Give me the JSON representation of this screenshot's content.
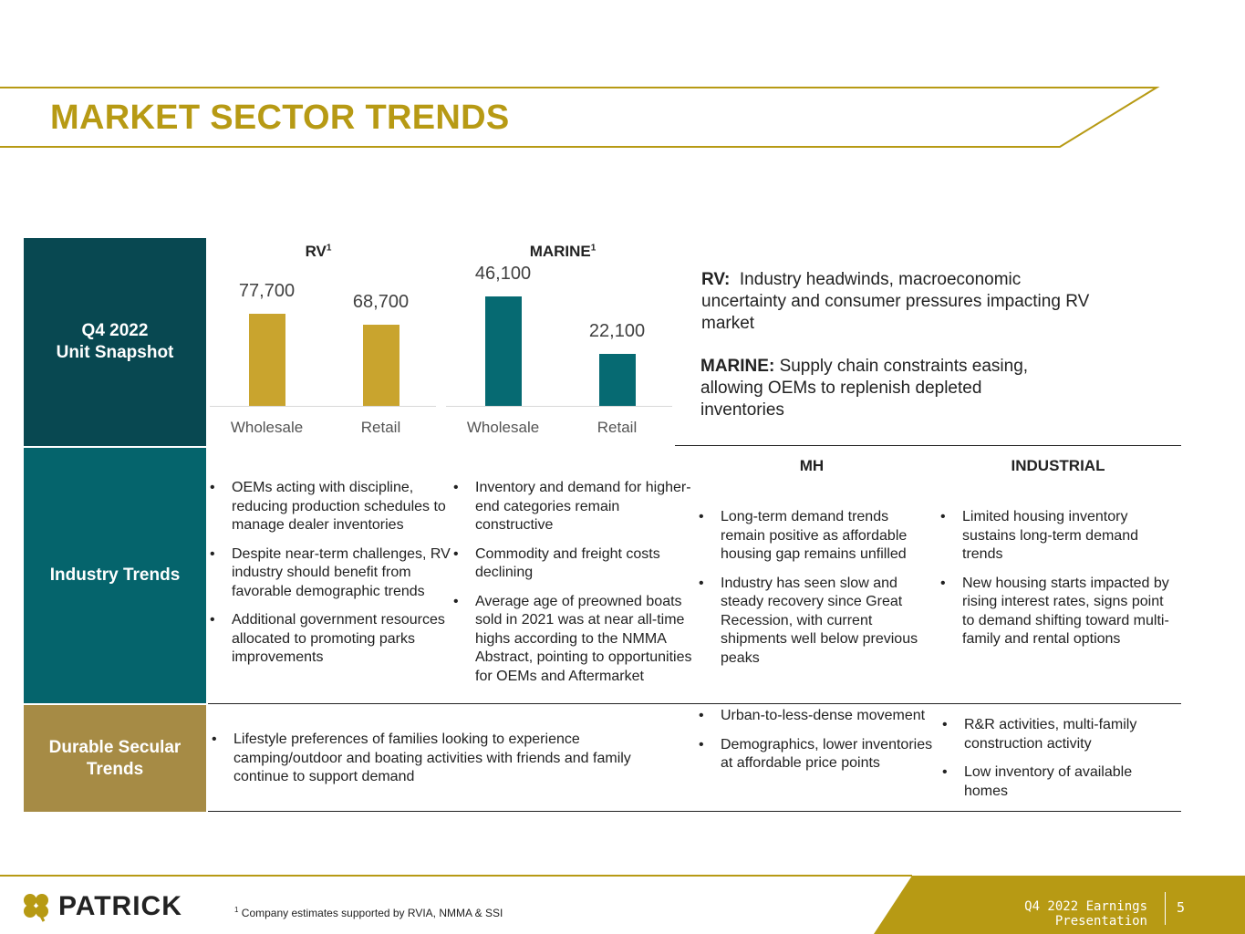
{
  "header": {
    "title": "MARKET SECTOR TRENDS"
  },
  "colors": {
    "gold": "#b79a14",
    "dark_teal": "#084851",
    "teal": "#05646c",
    "tan": "#a68b45",
    "bar_gold": "#c9a42e",
    "bar_teal": "#066a72"
  },
  "rows": {
    "snapshot": {
      "label_line1": "Q4 2022",
      "label_line2": "Unit Snapshot"
    },
    "industry_trends": {
      "label": "Industry Trends"
    },
    "durable": {
      "label_line1": "Durable Secular",
      "label_line2": "Trends"
    }
  },
  "chart_data": [
    {
      "type": "bar",
      "title": "RV",
      "title_sup": "1",
      "categories": [
        "Wholesale",
        "Retail"
      ],
      "values": [
        77700,
        68700
      ],
      "value_labels": [
        "77,700",
        "68,700"
      ],
      "ylim": [
        0,
        100000
      ]
    },
    {
      "type": "bar",
      "title": "MARINE",
      "title_sup": "1",
      "categories": [
        "Wholesale",
        "Retail"
      ],
      "values": [
        46100,
        22100
      ],
      "value_labels": [
        "46,100",
        "22,100"
      ],
      "ylim": [
        0,
        60000
      ]
    }
  ],
  "commentary": {
    "rv_label": "RV:",
    "rv_text": "Industry headwinds, macroeconomic uncertainty and consumer pressures impacting RV market",
    "marine_label": "MARINE:",
    "marine_text": "Supply chain constraints easing, allowing OEMs to replenish depleted inventories"
  },
  "columns": {
    "mh": "MH",
    "industrial": "INDUSTRIAL"
  },
  "industry_trends": {
    "rv": [
      "OEMs acting with discipline, reducing production schedules to manage dealer inventories",
      "Despite near-term challenges, RV industry should benefit from favorable demographic trends",
      "Additional government resources allocated to promoting parks improvements"
    ],
    "marine": [
      "Inventory and demand for higher-end categories remain constructive",
      "Commodity and freight costs declining",
      "Average age of preowned boats sold in 2021 was at near all-time highs according to the NMMA Abstract, pointing to opportunities for OEMs and Aftermarket"
    ],
    "mh": [
      "Long-term demand trends remain positive as affordable housing gap remains unfilled",
      "Industry has seen slow and steady recovery since Great Recession, with current shipments well below previous peaks"
    ],
    "industrial": [
      "Limited housing inventory sustains long-term demand trends",
      "New housing starts impacted by rising interest rates, signs point to demand shifting toward multi-family and rental options"
    ]
  },
  "durable_trends": {
    "rv_marine": [
      "Lifestyle preferences of families looking to experience camping/outdoor and boating activities with friends and family continue to support demand"
    ],
    "mh": [
      "Urban-to-less-dense movement",
      "Demographics, lower inventories at affordable price points"
    ],
    "industrial": [
      "R&R activities, multi-family construction activity",
      "Low inventory of available homes"
    ]
  },
  "footer": {
    "logo": "PATRICK",
    "footnote_sup": "1",
    "footnote": "Company estimates supported by RVIA, NMMA & SSI",
    "presentation": "Q4 2022 Earnings Presentation",
    "page_number": "5"
  }
}
